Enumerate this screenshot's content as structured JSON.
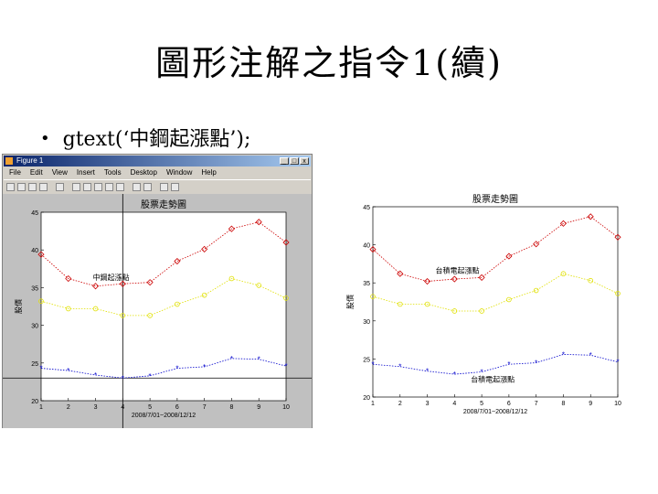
{
  "slide": {
    "title": "圖形注解之指令1(續)",
    "bullet": "gtext(‘中鋼起漲點’);"
  },
  "window": {
    "title": "Figure 1",
    "menu": [
      "File",
      "Edit",
      "View",
      "Insert",
      "Tools",
      "Desktop",
      "Window",
      "Help"
    ],
    "buttons": {
      "minimize": "_",
      "maximize": "□",
      "close": "x"
    },
    "toolbar_icons": [
      "new-file-icon",
      "open-folder-icon",
      "save-icon",
      "print-icon",
      "pointer-icon",
      "zoom-in-icon",
      "zoom-out-icon",
      "pan-icon",
      "rotate-icon",
      "data-cursor-icon",
      "colorbar-icon",
      "legend-icon",
      "hide-plot-tools-icon",
      "show-plot-tools-icon"
    ]
  },
  "chart_data": [
    {
      "type": "line",
      "title": "股票走勢圖",
      "xlabel": "2008/7/01~2008/12/12",
      "ylabel": "股價",
      "x": [
        1,
        2,
        3,
        4,
        5,
        6,
        7,
        8,
        9,
        10
      ],
      "xticks": [
        "1",
        "2",
        "3",
        "4",
        "5",
        "6",
        "7",
        "8",
        "9",
        "10"
      ],
      "ylim": [
        20,
        45
      ],
      "yticks": [
        "20",
        "25",
        "30",
        "35",
        "40",
        "45"
      ],
      "grid": false,
      "crosshair": {
        "x": 4,
        "y": 23
      },
      "annotation": {
        "text": "中鋼起漲點",
        "x": 2.9,
        "y": 36
      },
      "series": [
        {
          "color": "#cc0000",
          "marker": "diamond",
          "style": "dotted",
          "values": [
            39.4,
            36.2,
            35.2,
            35.5,
            35.7,
            38.5,
            40.1,
            42.8,
            43.7,
            41.0
          ]
        },
        {
          "color": "#e0e000",
          "marker": "circle",
          "style": "dotted",
          "values": [
            33.2,
            32.2,
            32.2,
            31.3,
            31.3,
            32.8,
            34.0,
            36.2,
            35.3,
            33.6
          ]
        },
        {
          "color": "#0000cc",
          "marker": "star",
          "style": "dotted",
          "values": [
            24.3,
            24.0,
            23.4,
            23.0,
            23.3,
            24.3,
            24.5,
            25.6,
            25.5,
            24.6
          ]
        }
      ]
    },
    {
      "type": "line",
      "title": "股票走勢圖",
      "xlabel": "2008/7/01~2008/12/12",
      "ylabel": "股價",
      "x": [
        1,
        2,
        3,
        4,
        5,
        6,
        7,
        8,
        9,
        10
      ],
      "xticks": [
        "1",
        "2",
        "3",
        "4",
        "5",
        "6",
        "7",
        "8",
        "9",
        "10"
      ],
      "ylim": [
        20,
        45
      ],
      "yticks": [
        "20",
        "25",
        "30",
        "35",
        "40",
        "45"
      ],
      "grid": false,
      "annotations": [
        {
          "text": "台積電起漲點",
          "x": 3.3,
          "y": 36.3
        },
        {
          "text": "台積電起漲點",
          "x": 4.6,
          "y": 22.0
        }
      ],
      "series": [
        {
          "color": "#cc0000",
          "marker": "diamond",
          "style": "dotted",
          "values": [
            39.4,
            36.2,
            35.2,
            35.5,
            35.7,
            38.5,
            40.1,
            42.8,
            43.7,
            41.0
          ]
        },
        {
          "color": "#e0e000",
          "marker": "circle",
          "style": "dotted",
          "values": [
            33.2,
            32.2,
            32.2,
            31.3,
            31.3,
            32.8,
            34.0,
            36.2,
            35.3,
            33.6
          ]
        },
        {
          "color": "#0000cc",
          "marker": "star",
          "style": "dotted",
          "values": [
            24.3,
            24.0,
            23.4,
            23.0,
            23.3,
            24.3,
            24.5,
            25.6,
            25.5,
            24.6
          ]
        }
      ]
    }
  ]
}
